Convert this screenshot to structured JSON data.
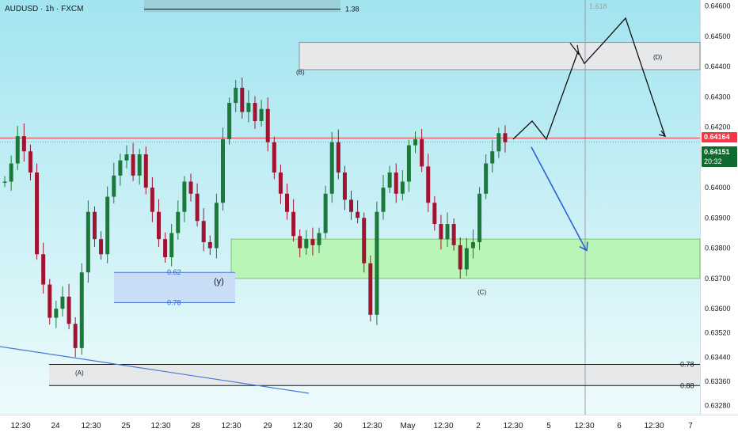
{
  "header": {
    "title": "AUDUSD · 1h · FXCM"
  },
  "colors": {
    "up_candle": "#1b7a3a",
    "down_candle": "#a01431",
    "current_line": "#f23645",
    "green_zone": "#b8f5b6",
    "blue_zone": "#c9ddf7",
    "gray_zone": "#e6e8ea",
    "projection_up": "#111111",
    "projection_down": "#2a62d6",
    "trendline": "#4a78d6"
  },
  "chart_data": {
    "type": "candlestick",
    "symbol": "AUDUSD",
    "timeframe": "1h",
    "source": "FXCM",
    "ylim": [
      0.6325,
      0.6462
    ],
    "y_ticks": [
      0.646,
      0.645,
      0.644,
      0.643,
      0.642,
      0.641,
      0.64,
      0.639,
      0.638,
      0.637,
      0.636,
      0.6352,
      0.6344,
      0.6336,
      0.6328
    ],
    "y_tick_labels": [
      "0.64600",
      "0.64500",
      "0.64400",
      "0.64300",
      "0.64200",
      "0.64100",
      "0.64000",
      "0.63900",
      "0.63800",
      "0.63700",
      "0.63600",
      "0.63520",
      "0.63440",
      "0.63360",
      "0.63280"
    ],
    "x_tick_labels": [
      "12:30",
      "24",
      "12:30",
      "25",
      "12:30",
      "28",
      "12:30",
      "29",
      "12:30",
      "30",
      "12:30",
      "May",
      "12:30",
      "2",
      "12:30",
      "5",
      "12:30",
      "6",
      "12:30",
      "7"
    ],
    "current_price": "0.64164",
    "last_price": "0.64151",
    "countdown": "20:32",
    "current_price_value": 0.64164,
    "last_price_value": 0.64151,
    "candle_path": [
      0.6402,
      0.6408,
      0.6417,
      0.6412,
      0.6405,
      0.6378,
      0.6368,
      0.6357,
      0.636,
      0.6364,
      0.6355,
      0.6347,
      0.6372,
      0.6392,
      0.6383,
      0.6378,
      0.6397,
      0.6404,
      0.6409,
      0.6411,
      0.6404,
      0.6411,
      0.64,
      0.6392,
      0.6383,
      0.6377,
      0.6385,
      0.6392,
      0.6402,
      0.6398,
      0.6389,
      0.6382,
      0.638,
      0.6395,
      0.6416,
      0.6428,
      0.6433,
      0.6425,
      0.6428,
      0.6422,
      0.6426,
      0.6415,
      0.6405,
      0.6398,
      0.6392,
      0.6384,
      0.638,
      0.6383,
      0.6381,
      0.6385,
      0.6398,
      0.6415,
      0.6405,
      0.6396,
      0.6392,
      0.639,
      0.6375,
      0.6358,
      0.6392,
      0.64,
      0.6405,
      0.6398,
      0.6402,
      0.6414,
      0.6416,
      0.6407,
      0.6395,
      0.6388,
      0.6383,
      0.6388,
      0.6381,
      0.6373,
      0.638,
      0.6382,
      0.6398,
      0.6408,
      0.6412,
      0.6418,
      0.6415
    ],
    "annotations": {
      "fib_top": {
        "label": "1.38",
        "value": 0.6459
      },
      "fib_top_zone": [
        0.6458,
        0.6468
      ],
      "zone_B": {
        "label": "(B)",
        "range": [
          0.6439,
          0.6448
        ]
      },
      "zone_D": {
        "label": "(D)"
      },
      "fib_1618": {
        "label": "1.618"
      },
      "green_support": [
        0.637,
        0.6383
      ],
      "blue_retracement": {
        "range": [
          0.6362,
          0.6372
        ],
        "levels": [
          {
            "label": "0.62",
            "value": 0.6372
          },
          {
            "label": "0.78",
            "value": 0.6362
          }
        ]
      },
      "wave_y": {
        "label": "(y)"
      },
      "wave_C": {
        "label": "(C)"
      },
      "wave_A": {
        "label": "(A)"
      },
      "bottom_zone": {
        "range": [
          0.63346,
          0.63416
        ],
        "levels": [
          {
            "label": "0.78",
            "value": 0.63416
          },
          {
            "label": "0.88",
            "value": 0.63346
          }
        ]
      },
      "projection_bullish": [
        0.6416,
        0.6422,
        0.6416,
        0.6445,
        0.6441,
        0.6449,
        0.6456,
        0.6417
      ],
      "projection_bearish": [
        0.6415,
        0.638
      ],
      "vertical_marker": {
        "label": "1.618"
      }
    }
  }
}
